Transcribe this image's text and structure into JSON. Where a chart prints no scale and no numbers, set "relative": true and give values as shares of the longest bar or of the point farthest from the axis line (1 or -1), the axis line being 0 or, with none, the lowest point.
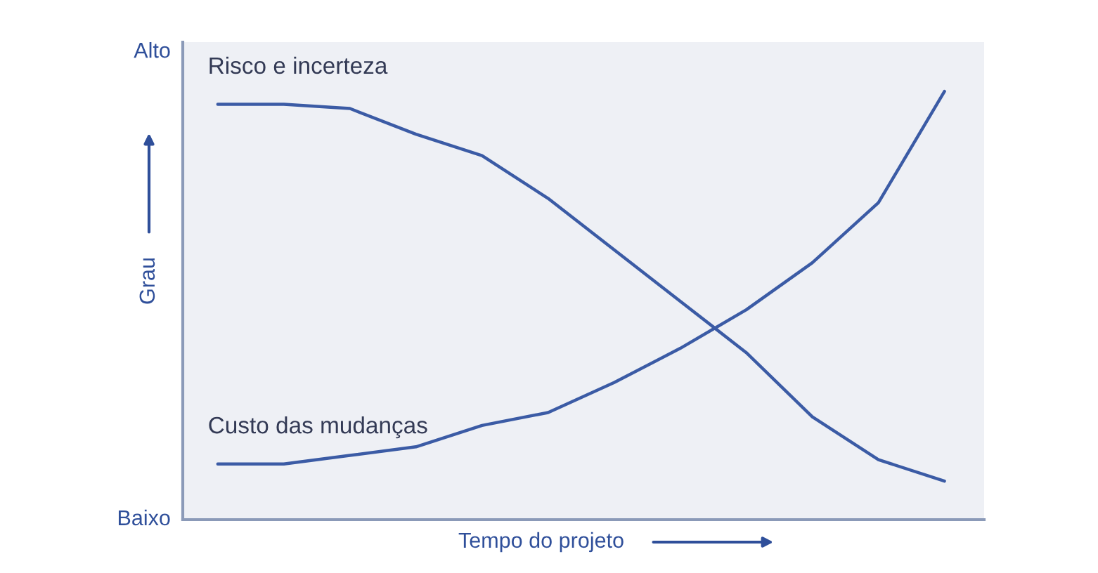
{
  "chart_data": {
    "type": "line",
    "relative": true,
    "xlabel": "Tempo do projeto",
    "ylabel": "Grau",
    "annotations": [
      "Alto",
      "Baixo"
    ],
    "categories": [
      null,
      null,
      null,
      null,
      null,
      null,
      null,
      null,
      null,
      null,
      null,
      null
    ],
    "series": [
      {
        "name": "Risco e incerteza",
        "color": "#3b5ba5",
        "values": [
          0.97,
          0.97,
          0.96,
          0.9,
          0.85,
          0.75,
          0.63,
          0.51,
          0.39,
          0.24,
          0.14,
          0.09
        ]
      },
      {
        "name": "Custo das mudanças",
        "color": "#3b5ba5",
        "values": [
          0.13,
          0.13,
          0.15,
          0.17,
          0.22,
          0.25,
          0.32,
          0.4,
          0.49,
          0.6,
          0.74,
          1.0
        ]
      }
    ],
    "legend": false,
    "grid": false,
    "marker": "none",
    "line_style": "solid"
  }
}
